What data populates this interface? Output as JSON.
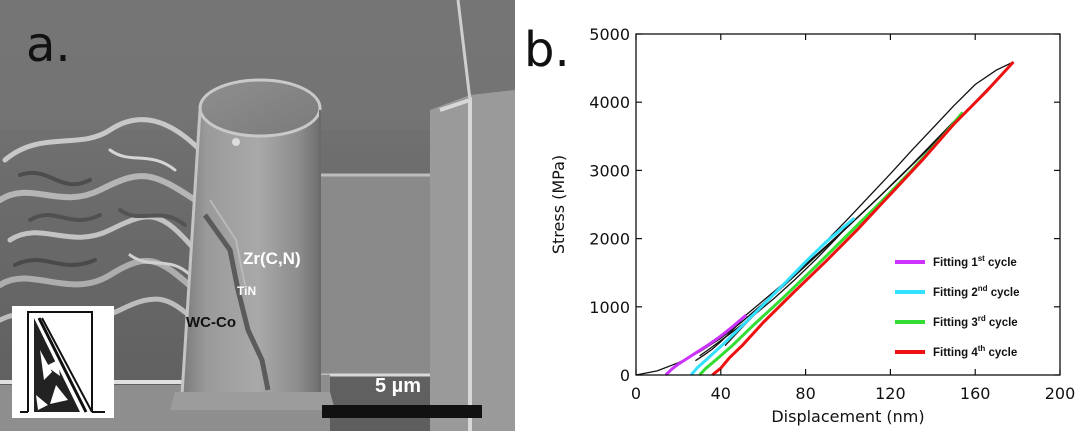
{
  "panel_a": {
    "letter": "a.",
    "labels": {
      "layer_top": "Zr(C,N)",
      "layer_mid": "TiN",
      "layer_substrate": "WC-Co"
    },
    "scale_bar_text": "5 µm"
  },
  "panel_b": {
    "letter": "b."
  },
  "chart_data": {
    "type": "line",
    "xlabel": "Displacement (nm)",
    "ylabel": "Stress (MPa)",
    "xlim": [
      0,
      200
    ],
    "ylim": [
      0,
      5000
    ],
    "xticks": [
      0,
      40,
      80,
      120,
      160,
      200
    ],
    "yticks": [
      0,
      1000,
      2000,
      3000,
      4000,
      5000
    ],
    "grid": false,
    "legend_position": "lower-right",
    "legend": [
      {
        "name": "Fitting 1",
        "sup": "st",
        "suffix": " cycle",
        "color": "#cc33ff"
      },
      {
        "name": "Fitting 2",
        "sup": "nd",
        "suffix": " cycle",
        "color": "#33e0ff"
      },
      {
        "name": "Fitting 3",
        "sup": "rd",
        "suffix": " cycle",
        "color": "#33dd33"
      },
      {
        "name": "Fitting 4",
        "sup": "th",
        "suffix": " cycle",
        "color": "#ee1111"
      }
    ],
    "measured_loading": {
      "x": [
        0,
        10,
        20,
        30,
        40,
        50,
        60,
        70,
        80,
        90,
        100,
        110,
        120,
        130,
        140,
        150,
        160,
        170,
        178
      ],
      "y": [
        0,
        60,
        180,
        340,
        540,
        780,
        1050,
        1340,
        1650,
        1970,
        2290,
        2620,
        2950,
        3290,
        3620,
        3950,
        4260,
        4470,
        4590
      ]
    },
    "unloading_cycles": [
      {
        "x": [
          52,
          48,
          44,
          40,
          36,
          32,
          28
        ],
        "y": [
          880,
          740,
          610,
          490,
          380,
          290,
          210
        ]
      },
      {
        "x": [
          103,
          95,
          85,
          75,
          65,
          55,
          45,
          35,
          30
        ],
        "y": [
          2300,
          2020,
          1700,
          1400,
          1120,
          860,
          620,
          390,
          280
        ]
      },
      {
        "x": [
          154,
          145,
          130,
          115,
          100,
          85,
          70,
          55,
          45,
          35
        ],
        "y": [
          3850,
          3560,
          3080,
          2620,
          2180,
          1760,
          1350,
          960,
          700,
          450
        ]
      },
      {
        "x": [
          178,
          170,
          155,
          140,
          125,
          110,
          95,
          80,
          65,
          52,
          42
        ],
        "y": [
          4590,
          4330,
          3850,
          3380,
          2920,
          2470,
          2030,
          1600,
          1170,
          760,
          430
        ]
      }
    ],
    "fitting_curves": [
      {
        "name": "Fitting 1st cycle",
        "color": "#cc33ff",
        "x": [
          14,
          17,
          20,
          24,
          29,
          34,
          40,
          46,
          52
        ],
        "y": [
          0,
          90,
          160,
          240,
          340,
          440,
          570,
          720,
          880
        ]
      },
      {
        "name": "Fitting 2nd cycle",
        "color": "#33e0ff",
        "x": [
          26,
          29,
          33,
          40,
          50,
          60,
          70,
          80,
          90,
          103
        ],
        "y": [
          0,
          110,
          220,
          420,
          720,
          1030,
          1340,
          1660,
          1960,
          2300
        ]
      },
      {
        "name": "Fitting 3rd cycle",
        "color": "#33dd33",
        "x": [
          30,
          33,
          38,
          45,
          55,
          70,
          85,
          100,
          115,
          130,
          145,
          154
        ],
        "y": [
          0,
          100,
          230,
          420,
          720,
          1150,
          1600,
          2060,
          2520,
          3000,
          3510,
          3850
        ]
      },
      {
        "name": "Fitting 4th cycle",
        "color": "#ee1111",
        "x": [
          36,
          40,
          44,
          50,
          60,
          75,
          90,
          105,
          120,
          135,
          150,
          165,
          178
        ],
        "y": [
          0,
          100,
          250,
          430,
          770,
          1230,
          1680,
          2150,
          2650,
          3150,
          3680,
          4150,
          4590
        ]
      }
    ]
  }
}
